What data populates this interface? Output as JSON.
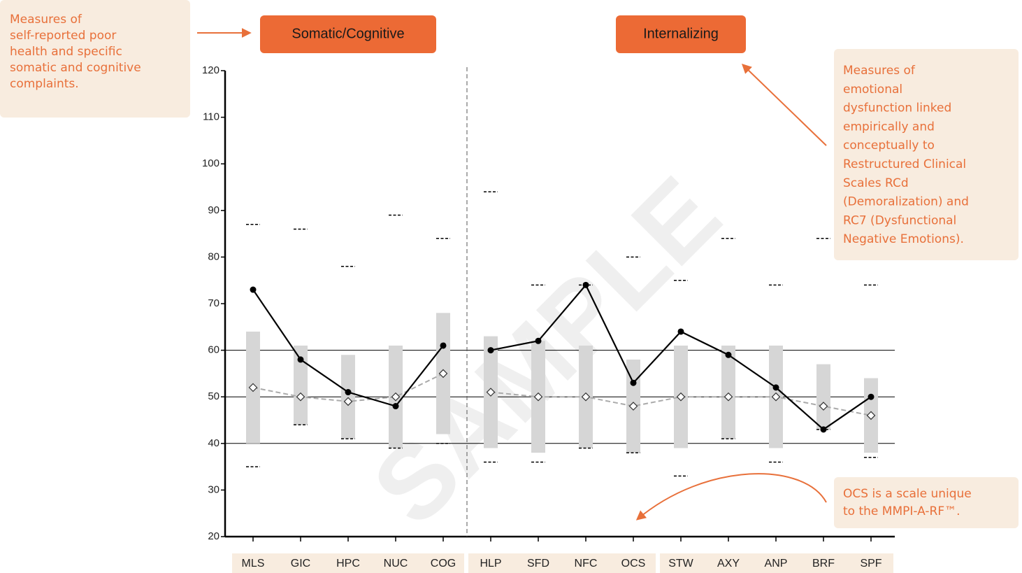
{
  "chart_data": {
    "type": "line",
    "ylim": [
      20,
      120
    ],
    "yticks": [
      20,
      30,
      40,
      50,
      60,
      70,
      80,
      90,
      100,
      110,
      120
    ],
    "reference_lines": [
      40,
      50,
      60
    ],
    "watermark": "SAMPLE",
    "panels": [
      {
        "title": "Somatic/Cognitive",
        "categories": [
          "MLS",
          "GIC",
          "HPC",
          "NUC",
          "COG"
        ],
        "ranges": [
          [
            40,
            64
          ],
          [
            44,
            61
          ],
          [
            41,
            59
          ],
          [
            39,
            61
          ],
          [
            42,
            68
          ]
        ],
        "limits": [
          [
            35,
            87
          ],
          [
            44,
            86
          ],
          [
            41,
            78
          ],
          [
            39,
            89
          ],
          [
            40,
            84
          ]
        ],
        "series": [
          {
            "color": "#000000",
            "marker": "circle",
            "values": [
              73,
              58,
              51,
              48,
              61
            ]
          },
          {
            "color": "#aaaaaa",
            "marker": "diamond",
            "dashed": true,
            "values": [
              52,
              50,
              49,
              50,
              55
            ]
          }
        ]
      },
      {
        "title": "Internalizing",
        "categories": [
          "HLP",
          "SFD",
          "NFC",
          "OCS",
          "STW",
          "AXY",
          "ANP",
          "BRF",
          "SPF"
        ],
        "ranges": [
          [
            39,
            63
          ],
          [
            38,
            62
          ],
          [
            39,
            61
          ],
          [
            38,
            58
          ],
          [
            39,
            61
          ],
          [
            41,
            61
          ],
          [
            39,
            61
          ],
          [
            43,
            57
          ],
          [
            38,
            54
          ]
        ],
        "limits": [
          [
            36,
            94
          ],
          [
            36,
            74
          ],
          [
            39,
            74
          ],
          [
            38,
            80
          ],
          [
            33,
            75
          ],
          [
            41,
            84
          ],
          [
            36,
            74
          ],
          [
            43,
            84
          ],
          [
            37,
            74
          ]
        ],
        "series": [
          {
            "color": "#000000",
            "marker": "circle",
            "values": [
              60,
              62,
              74,
              53,
              64,
              59,
              52,
              43,
              50
            ]
          },
          {
            "color": "#aaaaaa",
            "marker": "diamond",
            "dashed": true,
            "values": [
              51,
              50,
              50,
              48,
              50,
              50,
              50,
              48,
              46
            ]
          }
        ]
      }
    ],
    "annotations": [
      {
        "lines": [
          "Measures of",
          "self-reported poor",
          "health and specific",
          "somatic and cognitive",
          "complaints."
        ]
      },
      {
        "lines": [
          "Measures of",
          "emotional",
          "dysfunction linked",
          "empirically and",
          "conceptually to",
          "Restructured Clinical",
          "Scales RCd",
          "(Demoralization) and",
          "RC7 (Dysfunctional",
          "Negative Emotions)."
        ]
      },
      {
        "lines": [
          "OCS is a scale unique",
          "to the MMPI-A-RF™."
        ]
      }
    ]
  }
}
